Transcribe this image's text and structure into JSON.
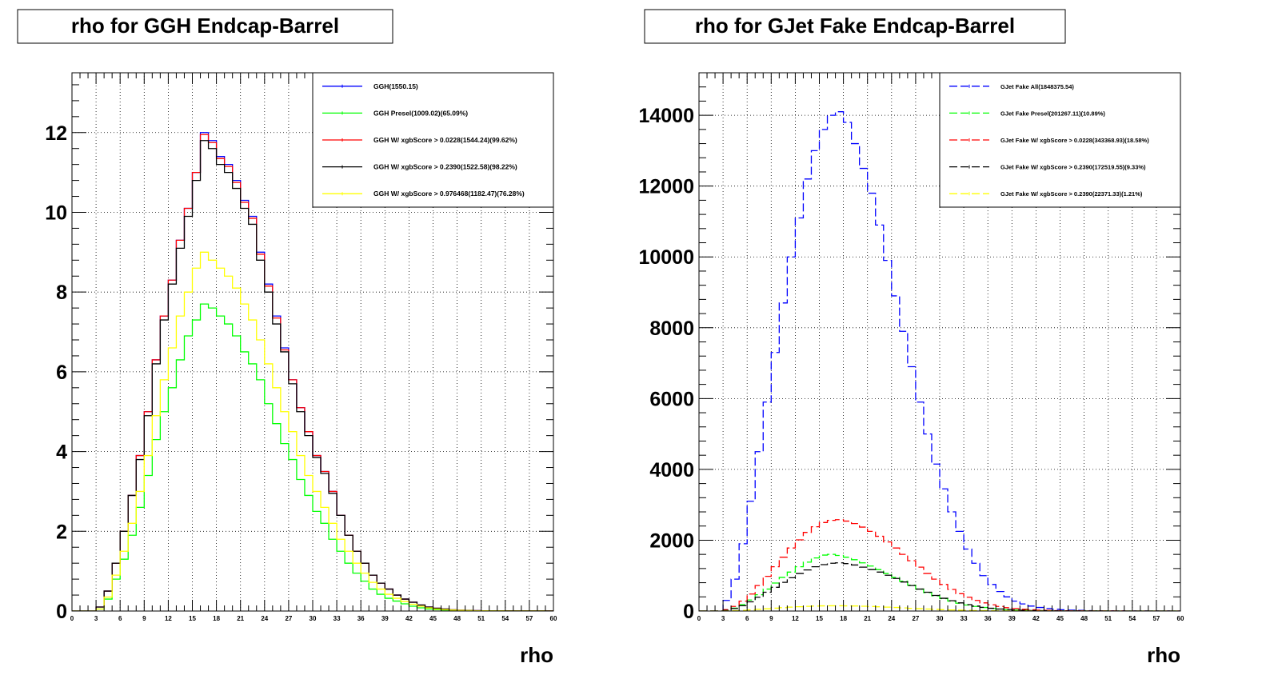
{
  "chart_data": [
    {
      "type": "line",
      "title": "rho for GGH Endcap-Barrel",
      "xlabel": "rho",
      "ylabel": "",
      "xlim": [
        0,
        60
      ],
      "ylim": [
        0,
        13.5
      ],
      "xticks": [
        0,
        3,
        6,
        9,
        12,
        15,
        18,
        21,
        24,
        27,
        30,
        33,
        36,
        39,
        42,
        45,
        48,
        51,
        54,
        57,
        60
      ],
      "yticks": [
        0,
        2,
        4,
        6,
        8,
        10,
        12
      ],
      "grid": true,
      "legend_position": "top-right",
      "x": [
        0,
        1,
        2,
        3,
        4,
        5,
        6,
        7,
        8,
        9,
        10,
        11,
        12,
        13,
        14,
        15,
        16,
        17,
        18,
        19,
        20,
        21,
        22,
        23,
        24,
        25,
        26,
        27,
        28,
        29,
        30,
        31,
        32,
        33,
        34,
        35,
        36,
        37,
        38,
        39,
        40,
        41,
        42,
        43,
        44,
        45,
        46,
        47,
        48,
        49,
        50,
        51,
        52,
        53,
        54,
        55,
        56,
        57,
        58,
        59,
        60
      ],
      "series": [
        {
          "name": "GGH(1550.15)",
          "color": "#0000ff",
          "dashed": false,
          "values": [
            0,
            0,
            0,
            0.1,
            0.5,
            1.2,
            2.0,
            2.9,
            3.9,
            5.0,
            6.3,
            7.4,
            8.3,
            9.3,
            10.1,
            11.0,
            12.0,
            11.8,
            11.4,
            11.2,
            10.8,
            10.3,
            9.9,
            9.0,
            8.2,
            7.4,
            6.6,
            5.8,
            5.1,
            4.5,
            3.9,
            3.5,
            3.0,
            2.4,
            1.9,
            1.5,
            1.2,
            0.9,
            0.7,
            0.55,
            0.4,
            0.3,
            0.22,
            0.15,
            0.1,
            0.07,
            0.05,
            0.03,
            0.02,
            0.015,
            0.01,
            0.008,
            0.006,
            0.005,
            0.004,
            0.003,
            0.002,
            0.002,
            0.001,
            0.001,
            0
          ]
        },
        {
          "name": "GGH Presel(1009.02)(65.09%)",
          "color": "#00ff00",
          "dashed": false,
          "values": [
            0,
            0,
            0,
            0.05,
            0.3,
            0.8,
            1.3,
            1.9,
            2.6,
            3.4,
            4.3,
            5.0,
            5.6,
            6.3,
            6.9,
            7.3,
            7.7,
            7.6,
            7.4,
            7.2,
            6.9,
            6.5,
            6.2,
            5.8,
            5.2,
            4.7,
            4.2,
            3.8,
            3.3,
            2.9,
            2.5,
            2.2,
            1.8,
            1.5,
            1.2,
            0.95,
            0.75,
            0.55,
            0.42,
            0.32,
            0.25,
            0.18,
            0.12,
            0.08,
            0.05,
            0.035,
            0.025,
            0.018,
            0.012,
            0.008,
            0.006,
            0.005,
            0.004,
            0.003,
            0.002,
            0.002,
            0.001,
            0.001,
            0.001,
            0,
            0
          ]
        },
        {
          "name": "GGH W/ xgbScore > 0.0228(1544.24)(99.62%)",
          "color": "#ff0000",
          "dashed": false,
          "values": [
            0,
            0,
            0,
            0.1,
            0.5,
            1.2,
            2.0,
            2.9,
            3.9,
            5.0,
            6.3,
            7.4,
            8.3,
            9.3,
            10.1,
            11.0,
            11.95,
            11.75,
            11.35,
            11.15,
            10.75,
            10.25,
            9.85,
            8.95,
            8.15,
            7.35,
            6.55,
            5.8,
            5.1,
            4.5,
            3.9,
            3.5,
            3.0,
            2.4,
            1.9,
            1.5,
            1.2,
            0.9,
            0.7,
            0.55,
            0.4,
            0.3,
            0.22,
            0.15,
            0.1,
            0.07,
            0.05,
            0.03,
            0.02,
            0.015,
            0.01,
            0.008,
            0.006,
            0.005,
            0.004,
            0.003,
            0.002,
            0.002,
            0.001,
            0.001,
            0
          ]
        },
        {
          "name": "GGH W/ xgbScore > 0.2390(1522.58)(98.22%)",
          "color": "#000000",
          "dashed": false,
          "values": [
            0,
            0,
            0,
            0.1,
            0.5,
            1.2,
            2.0,
            2.9,
            3.8,
            4.9,
            6.2,
            7.3,
            8.2,
            9.1,
            9.9,
            10.8,
            11.8,
            11.6,
            11.2,
            11.0,
            10.6,
            10.1,
            9.7,
            8.8,
            8.0,
            7.2,
            6.5,
            5.7,
            5.0,
            4.4,
            3.85,
            3.45,
            2.95,
            2.4,
            1.9,
            1.5,
            1.2,
            0.9,
            0.7,
            0.55,
            0.4,
            0.3,
            0.22,
            0.15,
            0.1,
            0.07,
            0.05,
            0.03,
            0.02,
            0.015,
            0.01,
            0.008,
            0.006,
            0.005,
            0.004,
            0.003,
            0.002,
            0.002,
            0.001,
            0.001,
            0
          ]
        },
        {
          "name": "GGH W/ xgbScore > 0.976468(1182.47)(76.28%)",
          "color": "#ffff00",
          "dashed": false,
          "values": [
            0,
            0,
            0,
            0.05,
            0.35,
            0.9,
            1.5,
            2.2,
            3.0,
            3.9,
            4.9,
            5.8,
            6.6,
            7.4,
            8.0,
            8.6,
            9.0,
            8.8,
            8.6,
            8.4,
            8.1,
            7.7,
            7.3,
            6.8,
            6.2,
            5.6,
            5.0,
            4.5,
            3.9,
            3.4,
            3.0,
            2.6,
            2.2,
            1.8,
            1.5,
            1.2,
            0.95,
            0.72,
            0.55,
            0.42,
            0.32,
            0.24,
            0.17,
            0.12,
            0.08,
            0.05,
            0.035,
            0.025,
            0.018,
            0.012,
            0.008,
            0.006,
            0.005,
            0.004,
            0.003,
            0.002,
            0.002,
            0.001,
            0.001,
            0,
            0
          ]
        }
      ]
    },
    {
      "type": "line",
      "title": "rho for GJet Fake Endcap-Barrel",
      "xlabel": "rho",
      "ylabel": "",
      "xlim": [
        0,
        60
      ],
      "ylim": [
        0,
        15200
      ],
      "xticks": [
        0,
        3,
        6,
        9,
        12,
        15,
        18,
        21,
        24,
        27,
        30,
        33,
        36,
        39,
        42,
        45,
        48,
        51,
        54,
        57,
        60
      ],
      "yticks": [
        0,
        2000,
        4000,
        6000,
        8000,
        10000,
        12000,
        14000
      ],
      "grid": true,
      "legend_position": "top-right",
      "x": [
        0,
        1,
        2,
        3,
        4,
        5,
        6,
        7,
        8,
        9,
        10,
        11,
        12,
        13,
        14,
        15,
        16,
        17,
        18,
        19,
        20,
        21,
        22,
        23,
        24,
        25,
        26,
        27,
        28,
        29,
        30,
        31,
        32,
        33,
        34,
        35,
        36,
        37,
        38,
        39,
        40,
        41,
        42,
        43,
        44,
        45,
        46,
        47,
        48,
        49,
        50,
        51,
        52,
        53,
        54,
        55,
        56,
        57,
        58,
        59,
        60
      ],
      "series": [
        {
          "name": "GJet Fake All(1848375.54)",
          "color": "#0000ff",
          "dashed": true,
          "values": [
            0,
            0,
            0,
            300,
            900,
            1900,
            3100,
            4500,
            5900,
            7300,
            8700,
            10000,
            11100,
            12200,
            13000,
            13600,
            14000,
            14100,
            13800,
            13200,
            12500,
            11800,
            10900,
            9900,
            8900,
            7900,
            6900,
            5900,
            5000,
            4150,
            3450,
            2800,
            2250,
            1750,
            1350,
            1000,
            750,
            550,
            400,
            280,
            200,
            140,
            100,
            70,
            50,
            35,
            25,
            18,
            12,
            9,
            6,
            5,
            4,
            3,
            2,
            2,
            1,
            1,
            1,
            0,
            0
          ]
        },
        {
          "name": "GJet Fake Presel(201267.11)(10.89%)",
          "color": "#00ff00",
          "dashed": true,
          "values": [
            0,
            0,
            0,
            20,
            80,
            180,
            310,
            460,
            620,
            790,
            950,
            1100,
            1250,
            1380,
            1500,
            1580,
            1600,
            1570,
            1520,
            1450,
            1360,
            1270,
            1170,
            1060,
            950,
            840,
            730,
            620,
            520,
            430,
            350,
            280,
            220,
            170,
            130,
            100,
            75,
            55,
            40,
            28,
            20,
            14,
            10,
            7,
            5,
            3,
            2,
            2,
            1,
            1,
            1,
            0,
            0,
            0,
            0,
            0,
            0,
            0,
            0,
            0,
            0
          ]
        },
        {
          "name": "GJet Fake W/ xgbScore > 0.0228(343368.93)(18.58%)",
          "color": "#ff0000",
          "dashed": true,
          "values": [
            0,
            0,
            0,
            40,
            130,
            280,
            480,
            720,
            980,
            1250,
            1520,
            1780,
            2010,
            2220,
            2380,
            2500,
            2560,
            2580,
            2540,
            2470,
            2370,
            2250,
            2110,
            1950,
            1780,
            1600,
            1420,
            1240,
            1060,
            900,
            750,
            610,
            490,
            390,
            300,
            230,
            175,
            130,
            95,
            70,
            50,
            35,
            25,
            18,
            12,
            8,
            6,
            4,
            3,
            2,
            1,
            1,
            1,
            0,
            0,
            0,
            0,
            0,
            0,
            0,
            0
          ]
        },
        {
          "name": "GJet Fake W/ xgbScore > 0.2390(172519.55)(9.33%)",
          "color": "#000000",
          "dashed": true,
          "values": [
            0,
            0,
            0,
            20,
            70,
            150,
            260,
            390,
            530,
            670,
            810,
            940,
            1060,
            1160,
            1250,
            1310,
            1350,
            1360,
            1340,
            1300,
            1240,
            1170,
            1100,
            1010,
            920,
            820,
            720,
            620,
            530,
            440,
            360,
            290,
            230,
            180,
            140,
            105,
            78,
            57,
            42,
            30,
            21,
            15,
            10,
            7,
            5,
            3,
            2,
            1,
            1,
            1,
            0,
            0,
            0,
            0,
            0,
            0,
            0,
            0,
            0,
            0,
            0
          ]
        },
        {
          "name": "GJet Fake W/ xgbScore > 0.2390(22371.33)(1.21%)",
          "color": "#ffff00",
          "dashed": true,
          "values": [
            0,
            0,
            0,
            3,
            10,
            20,
            33,
            48,
            64,
            80,
            95,
            110,
            122,
            132,
            140,
            145,
            148,
            148,
            146,
            142,
            136,
            128,
            120,
            110,
            100,
            88,
            77,
            66,
            56,
            47,
            38,
            31,
            25,
            19,
            15,
            11,
            8,
            6,
            4,
            3,
            2,
            1,
            1,
            1,
            0,
            0,
            0,
            0,
            0,
            0,
            0,
            0,
            0,
            0,
            0,
            0,
            0,
            0,
            0,
            0,
            0
          ]
        }
      ]
    }
  ]
}
